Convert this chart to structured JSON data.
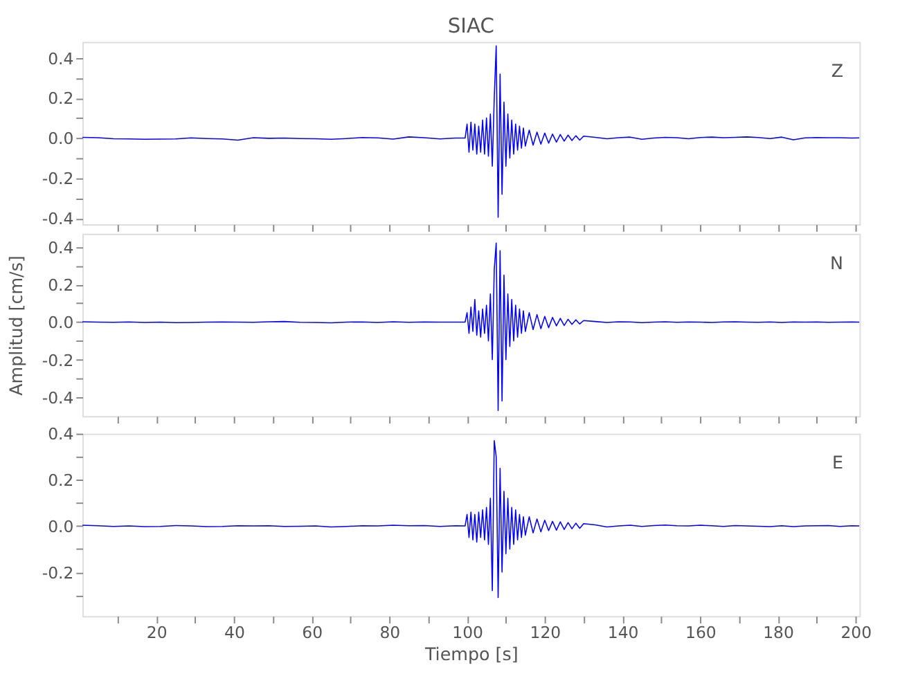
{
  "chart_data": [
    {
      "type": "line",
      "title": "SIAC",
      "annotations": [
        "Z"
      ],
      "tick_labels": "y",
      "grid": false,
      "x": [
        1,
        5,
        9,
        13,
        17,
        21,
        25,
        29,
        33,
        37,
        41,
        45,
        49,
        53,
        57,
        61,
        65,
        69,
        73,
        77,
        81,
        85,
        89,
        93,
        97,
        99.5,
        100,
        100.5,
        101,
        101.5,
        102,
        102.5,
        103,
        103.5,
        104,
        104.5,
        105,
        105.5,
        106,
        106.5,
        107,
        107.5,
        108,
        108.5,
        109,
        109.5,
        110,
        110.5,
        111,
        111.5,
        112,
        112.5,
        113,
        113.5,
        114,
        114.5,
        115,
        116,
        117,
        118,
        119,
        120,
        121,
        122,
        123,
        124,
        125,
        126,
        127,
        128,
        129,
        130,
        133,
        136,
        139,
        142,
        145,
        148,
        151,
        154,
        157,
        160,
        163,
        166,
        169,
        172,
        175,
        178,
        181,
        184,
        187,
        190,
        193,
        196,
        199,
        201
      ],
      "series": [
        {
          "color": "#0000ff",
          "values": [
            0.004,
            0.002,
            -0.003,
            -0.004,
            -0.006,
            -0.005,
            -0.004,
            0.001,
            -0.002,
            -0.004,
            -0.01,
            0.002,
            -0.001,
            0.0,
            -0.002,
            -0.003,
            -0.006,
            -0.002,
            0.003,
            0.001,
            -0.005,
            0.006,
            0.002,
            -0.004,
            0.0,
            0.0,
            0.07,
            -0.07,
            0.08,
            -0.06,
            0.07,
            -0.08,
            0.06,
            -0.07,
            0.09,
            -0.08,
            0.1,
            -0.09,
            0.12,
            -0.14,
            0.2,
            0.46,
            -0.395,
            0.32,
            -0.28,
            0.18,
            -0.14,
            0.12,
            -0.1,
            0.09,
            -0.08,
            0.07,
            -0.06,
            0.06,
            -0.05,
            0.05,
            -0.04,
            0.04,
            -0.035,
            0.03,
            -0.03,
            0.025,
            -0.025,
            0.02,
            -0.02,
            0.018,
            -0.015,
            0.015,
            -0.012,
            0.012,
            -0.01,
            0.01,
            0.004,
            -0.003,
            0.002,
            0.005,
            -0.006,
            0.0,
            0.004,
            0.002,
            -0.003,
            0.003,
            0.005,
            0.002,
            0.004,
            0.006,
            0.003,
            -0.002,
            0.005,
            -0.008,
            0.001,
            0.003,
            0.002,
            0.002,
            0.0,
            0.001
          ]
        }
      ],
      "xlim": [
        1,
        201
      ],
      "xticks": [
        {
          "value": 10,
          "label": null
        },
        20,
        {
          "value": 30,
          "label": null
        },
        40,
        {
          "value": 50,
          "label": null
        },
        60,
        {
          "value": 70,
          "label": null
        },
        80,
        {
          "value": 90,
          "label": null
        },
        100,
        {
          "value": 110,
          "label": null
        },
        120,
        {
          "value": 130,
          "label": null
        },
        140,
        {
          "value": 150,
          "label": null
        },
        160,
        {
          "value": 170,
          "label": null
        },
        180,
        {
          "value": 190,
          "label": null
        },
        200
      ],
      "ylim": [
        -0.43,
        0.48
      ],
      "yticks": [
        0.4,
        {
          "value": 0.3,
          "label": null
        },
        0.2,
        {
          "value": 0.1,
          "label": null
        },
        {
          "value": 0,
          "label": "0.0"
        },
        {
          "value": -0.1,
          "label": null
        },
        -0.2,
        {
          "value": -0.3,
          "label": null
        },
        -0.4
      ]
    },
    {
      "type": "line",
      "ylabel": "Amplitud [cm/s]",
      "annotations": [
        "N"
      ],
      "tick_labels": "y",
      "grid": false,
      "x": [
        1,
        5,
        9,
        13,
        17,
        21,
        25,
        29,
        33,
        37,
        41,
        45,
        49,
        53,
        57,
        61,
        65,
        69,
        73,
        77,
        81,
        85,
        89,
        93,
        97,
        99.5,
        100,
        100.5,
        101,
        101.5,
        102,
        102.5,
        103,
        103.5,
        104,
        104.5,
        105,
        105.5,
        106,
        106.5,
        107,
        107.5,
        108,
        108.5,
        109,
        109.5,
        110,
        110.5,
        111,
        111.5,
        112,
        112.5,
        113,
        113.5,
        114,
        114.5,
        115,
        116,
        117,
        118,
        119,
        120,
        121,
        122,
        123,
        124,
        125,
        126,
        127,
        128,
        129,
        130,
        133,
        136,
        139,
        142,
        145,
        148,
        151,
        154,
        157,
        160,
        163,
        166,
        169,
        172,
        175,
        178,
        181,
        184,
        187,
        190,
        193,
        196,
        199,
        201
      ],
      "series": [
        {
          "color": "#0000ff",
          "values": [
            0.002,
            0.0,
            -0.001,
            0.001,
            -0.002,
            0.0,
            -0.003,
            -0.002,
            0.0,
            0.001,
            0.0,
            -0.001,
            0.002,
            0.003,
            -0.001,
            -0.002,
            -0.004,
            0.0,
            0.001,
            -0.002,
            0.002,
            -0.001,
            0.001,
            0.0,
            0.0,
            0.0,
            0.05,
            -0.06,
            0.08,
            -0.05,
            0.12,
            -0.07,
            0.06,
            -0.08,
            0.07,
            -0.06,
            0.09,
            -0.1,
            0.15,
            -0.2,
            0.28,
            0.42,
            -0.47,
            0.38,
            -0.42,
            0.25,
            -0.2,
            0.15,
            -0.13,
            0.12,
            -0.1,
            0.09,
            -0.08,
            0.07,
            -0.06,
            0.06,
            -0.05,
            0.05,
            -0.04,
            0.04,
            -0.035,
            0.03,
            -0.03,
            0.025,
            -0.02,
            0.02,
            -0.018,
            0.015,
            -0.012,
            0.012,
            -0.01,
            0.008,
            0.003,
            -0.002,
            0.002,
            0.001,
            -0.003,
            0.0,
            0.002,
            -0.001,
            0.001,
            0.0,
            -0.002,
            0.001,
            0.002,
            0.0,
            -0.001,
            0.001,
            -0.002,
            0.001,
            0.0,
            0.001,
            -0.001,
            0.0,
            0.001,
            0.0
          ]
        }
      ],
      "xlim": [
        1,
        201
      ],
      "xticks": [
        {
          "value": 10,
          "label": null
        },
        20,
        {
          "value": 30,
          "label": null
        },
        40,
        {
          "value": 50,
          "label": null
        },
        60,
        {
          "value": 70,
          "label": null
        },
        80,
        {
          "value": 90,
          "label": null
        },
        100,
        {
          "value": 110,
          "label": null
        },
        120,
        {
          "value": 130,
          "label": null
        },
        140,
        {
          "value": 150,
          "label": null
        },
        160,
        {
          "value": 170,
          "label": null
        },
        180,
        {
          "value": 190,
          "label": null
        },
        200
      ],
      "ylim": [
        -0.5,
        0.47
      ],
      "yticks": [
        0.4,
        {
          "value": 0.3,
          "label": null
        },
        0.2,
        {
          "value": 0.1,
          "label": null
        },
        {
          "value": 0,
          "label": "0.0"
        },
        {
          "value": -0.1,
          "label": null
        },
        -0.2,
        {
          "value": -0.3,
          "label": null
        },
        -0.4
      ]
    },
    {
      "type": "line",
      "xlabel": "Tiempo [s]",
      "annotations": [
        "E"
      ],
      "grid": false,
      "x": [
        1,
        5,
        9,
        13,
        17,
        21,
        25,
        29,
        33,
        37,
        41,
        45,
        49,
        53,
        57,
        61,
        65,
        69,
        73,
        77,
        81,
        85,
        89,
        93,
        97,
        99.5,
        100,
        100.5,
        101,
        101.5,
        102,
        102.5,
        103,
        103.5,
        104,
        104.5,
        105,
        105.5,
        106,
        106.5,
        107,
        107.5,
        108,
        108.5,
        109,
        109.5,
        110,
        110.5,
        111,
        111.5,
        112,
        112.5,
        113,
        113.5,
        114,
        114.5,
        115,
        116,
        117,
        118,
        119,
        120,
        121,
        122,
        123,
        124,
        125,
        126,
        127,
        128,
        129,
        130,
        133,
        136,
        139,
        142,
        145,
        148,
        151,
        154,
        157,
        160,
        163,
        166,
        169,
        172,
        175,
        178,
        181,
        184,
        187,
        190,
        193,
        196,
        199,
        201
      ],
      "series": [
        {
          "color": "#0000ff",
          "values": [
            0.003,
            0.001,
            -0.002,
            0.0,
            -0.003,
            -0.002,
            0.002,
            0.0,
            -0.003,
            -0.002,
            0.001,
            0.0,
            0.001,
            -0.002,
            -0.001,
            0.0,
            -0.004,
            -0.002,
            0.001,
            0.0,
            0.003,
            0.001,
            0.002,
            -0.002,
            0.001,
            0.0,
            0.05,
            -0.05,
            0.06,
            -0.06,
            0.05,
            -0.07,
            0.06,
            -0.05,
            0.07,
            -0.06,
            0.08,
            -0.08,
            0.12,
            -0.28,
            0.37,
            0.3,
            -0.31,
            0.25,
            -0.2,
            0.15,
            -0.12,
            0.12,
            -0.1,
            0.08,
            -0.08,
            0.07,
            -0.06,
            0.05,
            -0.05,
            0.04,
            -0.04,
            0.04,
            -0.03,
            0.03,
            -0.025,
            0.025,
            -0.02,
            0.02,
            -0.018,
            0.018,
            -0.015,
            0.015,
            -0.012,
            0.012,
            -0.01,
            0.01,
            0.005,
            -0.004,
            0.0,
            0.003,
            -0.002,
            0.002,
            0.004,
            0.001,
            0.0,
            0.003,
            0.001,
            -0.002,
            0.002,
            0.0,
            -0.001,
            -0.003,
            0.001,
            -0.003,
            0.0,
            0.001,
            0.002,
            -0.002,
            0.001,
            0.0
          ]
        }
      ],
      "xlim": [
        1,
        201
      ],
      "xticks": [
        {
          "value": 10,
          "label": null
        },
        20,
        {
          "value": 30,
          "label": null
        },
        40,
        {
          "value": 50,
          "label": null
        },
        60,
        {
          "value": 70,
          "label": null
        },
        80,
        {
          "value": 90,
          "label": null
        },
        100,
        {
          "value": 110,
          "label": null
        },
        120,
        {
          "value": 130,
          "label": null
        },
        140,
        {
          "value": 150,
          "label": null
        },
        160,
        {
          "value": 170,
          "label": null
        },
        180,
        {
          "value": 190,
          "label": null
        },
        200
      ],
      "ylim": [
        -0.39,
        0.4
      ],
      "yticks": [
        0.4,
        {
          "value": 0.3,
          "label": null
        },
        0.2,
        {
          "value": 0.1,
          "label": null
        },
        {
          "value": 0,
          "label": "0.0"
        },
        {
          "value": -0.1,
          "label": null
        },
        -0.2,
        {
          "value": -0.3,
          "label": null
        }
      ]
    }
  ]
}
